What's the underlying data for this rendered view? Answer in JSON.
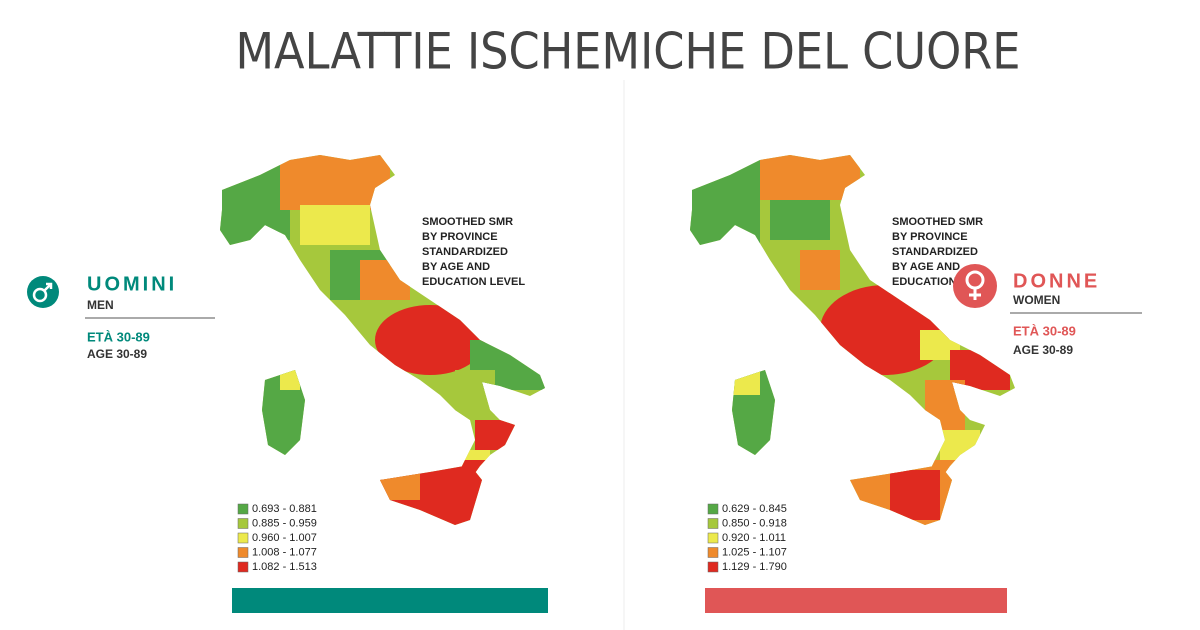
{
  "title": "MALATTIE ISCHEMICHE DEL CUORE",
  "panels": [
    {
      "label": "UOMINI",
      "sublabel": "MEN",
      "age_label": "ETÀ 30-89",
      "age_sublabel": "AGE 30-89",
      "accent": "#00897b",
      "note": [
        "SMOOTHED SMR",
        "BY PROVINCE",
        "STANDARDIZED",
        "BY AGE AND",
        "EDUCATION LEVEL"
      ],
      "legend": [
        {
          "label": "0.693 - 0.881",
          "color": "#55a845"
        },
        {
          "label": "0.885 - 0.959",
          "color": "#a6c83c"
        },
        {
          "label": "0.960 - 1.007",
          "color": "#ece94c"
        },
        {
          "label": "1.008 - 1.077",
          "color": "#ef8a2c"
        },
        {
          "label": "1.082 - 1.513",
          "color": "#df2a20"
        }
      ]
    },
    {
      "label": "DONNE",
      "sublabel": "WOMEN",
      "age_label": "ETÀ 30-89",
      "age_sublabel": "AGE 30-89",
      "accent": "#e05656",
      "note": [
        "SMOOTHED SMR",
        "BY PROVINCE",
        "STANDARDIZED",
        "BY AGE AND",
        "EDUCATION LEVEL"
      ],
      "legend": [
        {
          "label": "0.629 - 0.845",
          "color": "#55a845"
        },
        {
          "label": "0.850 - 0.918",
          "color": "#a6c83c"
        },
        {
          "label": "0.920 - 1.011",
          "color": "#ece94c"
        },
        {
          "label": "1.025 - 1.107",
          "color": "#ef8a2c"
        },
        {
          "label": "1.129 - 1.790",
          "color": "#df2a20"
        }
      ]
    }
  ]
}
